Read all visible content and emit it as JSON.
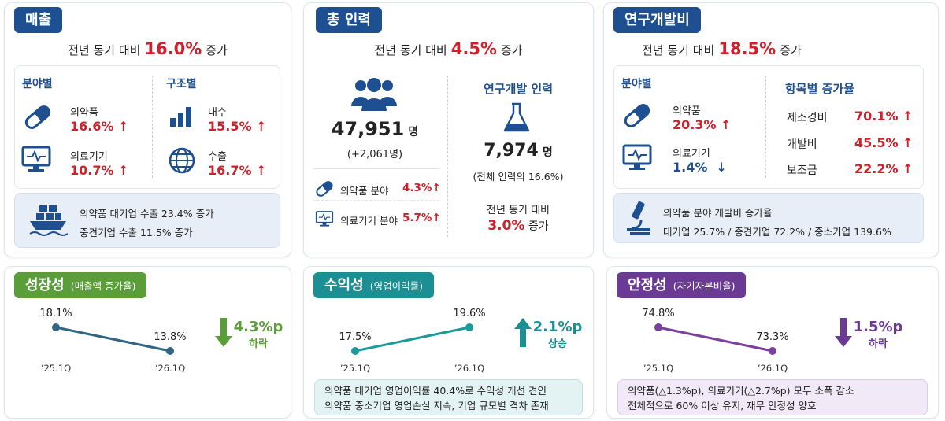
{
  "cards": [
    {
      "title": "매출",
      "summary": {
        "prefix": "전년 동기 대비",
        "value": "16.0%",
        "suffix": "증가"
      },
      "groups": [
        {
          "title": "분야별",
          "items": [
            {
              "label": "의약품",
              "value": "16.6% ↑"
            },
            {
              "label": "의료기기",
              "value": "10.7% ↑"
            }
          ]
        },
        {
          "title": "구조별",
          "items": [
            {
              "label": "내수",
              "value": "15.5% ↑"
            },
            {
              "label": "수출",
              "value": "16.7% ↑"
            }
          ]
        }
      ],
      "note": [
        "의약품 대기업 수출 23.4% 증가",
        "중견기업 수출 11.5% 증가"
      ]
    },
    {
      "title": "총 인력",
      "summary": {
        "prefix": "전년 동기 대비",
        "value": "4.5%",
        "suffix": "증가"
      },
      "total": {
        "value": "47,951",
        "unit": "명",
        "change": "(+2,061명)"
      },
      "items": [
        {
          "label": "의약품 분야",
          "value": "4.3%↑"
        },
        {
          "label": "의료기기 분야",
          "value": "5.7%↑"
        }
      ],
      "rd": {
        "title": "연구개발 인력",
        "value": "7,974",
        "unit": "명",
        "share": "(전체 인력의 16.6%)",
        "compare": "전년 동기 대비",
        "change": "3.0%",
        "change_suffix": "증가"
      }
    },
    {
      "title": "연구개발비",
      "summary": {
        "prefix": "전년 동기 대비",
        "value": "18.5%",
        "suffix": "증가"
      },
      "groups": [
        {
          "title": "분야별",
          "items": [
            {
              "label": "의약품",
              "value": "20.3% ↑"
            },
            {
              "label": "의료기기",
              "value": "1.4%  ↓"
            }
          ]
        },
        {
          "title": "항목별 증가율",
          "items": [
            {
              "label": "제조경비",
              "value": "70.1% ↑"
            },
            {
              "label": "개발비",
              "value": "45.5% ↑"
            },
            {
              "label": "보조금",
              "value": "22.2% ↑"
            }
          ]
        }
      ],
      "note": [
        "의약품 분야 개발비 증가율",
        "대기업 25.7% / 중견기업 72.2% / 중소기업 139.6%"
      ]
    }
  ],
  "chart_data": [
    {
      "type": "line",
      "title": "성장성",
      "subtitle": "(매출액 증가율)",
      "categories": [
        "’25.1Q",
        "’26.1Q"
      ],
      "values": [
        18.1,
        13.8
      ],
      "value_labels": [
        "18.1%",
        "13.8%"
      ],
      "color": "#2f6684",
      "change": "4.3%p",
      "change_label": "하락"
    },
    {
      "type": "line",
      "title": "수익성",
      "subtitle": "(영업이익률)",
      "categories": [
        "’25.1Q",
        "’26.1Q"
      ],
      "values": [
        17.5,
        19.6
      ],
      "value_labels": [
        "17.5%",
        "19.6%"
      ],
      "color": "#1a9a9a",
      "change": "2.1%p",
      "change_label": "상승",
      "note": [
        "의약품 대기업 영업이익률 40.4%로 수익성 개선 견인",
        "의약품 중소기업 영업손실 지속, 기업 규모별 격차 존재"
      ]
    },
    {
      "type": "line",
      "title": "안정성",
      "subtitle": "(자기자본비율)",
      "categories": [
        "’25.1Q",
        "’26.1Q"
      ],
      "values": [
        74.8,
        73.3
      ],
      "value_labels": [
        "74.8%",
        "73.3%"
      ],
      "color": "#7b3f9e",
      "change": "1.5%p",
      "change_label": "하락",
      "note": [
        "의약품(△1.3%p), 의료기기(△2.7%p) 모두 소폭 감소",
        "전체적으로 60% 이상 유지, 재무 안정성 양호"
      ]
    }
  ]
}
